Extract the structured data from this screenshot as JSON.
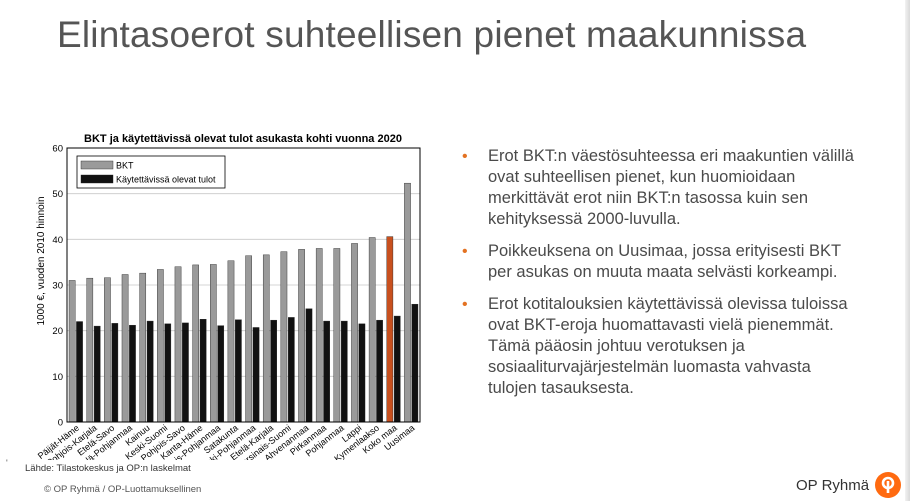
{
  "slide": {
    "title": "Elintasoerot suhteellisen pienet maakunnissa",
    "source": "Lähde: Tilastokeskus ja OP:n laskelmat",
    "copyright": "© OP Ryhmä / OP-Luottamuksellinen",
    "small_mark": "'",
    "brand": "OP Ryhmä",
    "brand_color": "#ff6a10",
    "accent_color": "#e37222"
  },
  "bullets": [
    {
      "text": "Erot BKT:n väestösuhteessa eri maakuntien välillä ovat suhteellisen pienet, kun huomioidaan merkittävät erot niin BKT:n tasossa kuin sen kehityksessä 2000-luvulla."
    },
    {
      "text": "Poikkeuksena on Uusimaa, jossa erityisesti BKT per asukas on muuta maata selvästi korkeampi."
    },
    {
      "text": "Erot kotitalouksien käytettävissä olevissa tuloissa ovat BKT-eroja huomattavasti vielä pienemmät. Tämä pääosin johtuu verotuksen ja sosiaaliturvajärjestelmän luomasta vahvasta tulojen tasauksesta."
    }
  ],
  "chart_data": {
    "type": "bar",
    "title": "BKT ja käytettävissä olevat tulot asukasta kohti vuonna 2020",
    "ylabel": "1000 €, vuoden 2010 hinnoin",
    "xlabel": "",
    "ylim": [
      0,
      60
    ],
    "yticks": [
      0,
      10,
      20,
      30,
      40,
      50,
      60
    ],
    "grid": true,
    "legend": "top-left",
    "categories": [
      "Päijät-Häme",
      "Pohjois-Karjala",
      "Etelä-Savo",
      "Etelä-Pohjanmaa",
      "Kainuu",
      "Keski-Suomi",
      "Pohjois-Savo",
      "Kanta-Häme",
      "Pohjois-Pohjanmaa",
      "Satakunta",
      "Keski-Pohjanmaa",
      "Etelä-Karjala",
      "Varsinais-Suomi",
      "Ahvenanmaa",
      "Pirkanmaa",
      "Pohjanmaa",
      "Lappi",
      "Kymenlaakso",
      "Koko maa",
      "Uusimaa"
    ],
    "highlight_category": "Koko maa",
    "highlight_color": "#c8501e",
    "series": [
      {
        "name": "BKT",
        "color": "#9a9a9a",
        "values": [
          31.0,
          31.5,
          31.6,
          32.3,
          32.6,
          33.4,
          34.0,
          34.4,
          34.5,
          35.3,
          36.4,
          36.6,
          37.3,
          37.8,
          38.0,
          38.0,
          39.1,
          40.4,
          40.6,
          52.3
        ]
      },
      {
        "name": "Käytettävissä olevat tulot",
        "color": "#111111",
        "values": [
          22.0,
          21.0,
          21.6,
          21.2,
          22.1,
          21.5,
          21.7,
          22.5,
          21.1,
          22.4,
          20.7,
          22.3,
          22.9,
          24.8,
          22.1,
          22.1,
          21.5,
          22.3,
          23.2,
          25.8
        ]
      }
    ]
  }
}
